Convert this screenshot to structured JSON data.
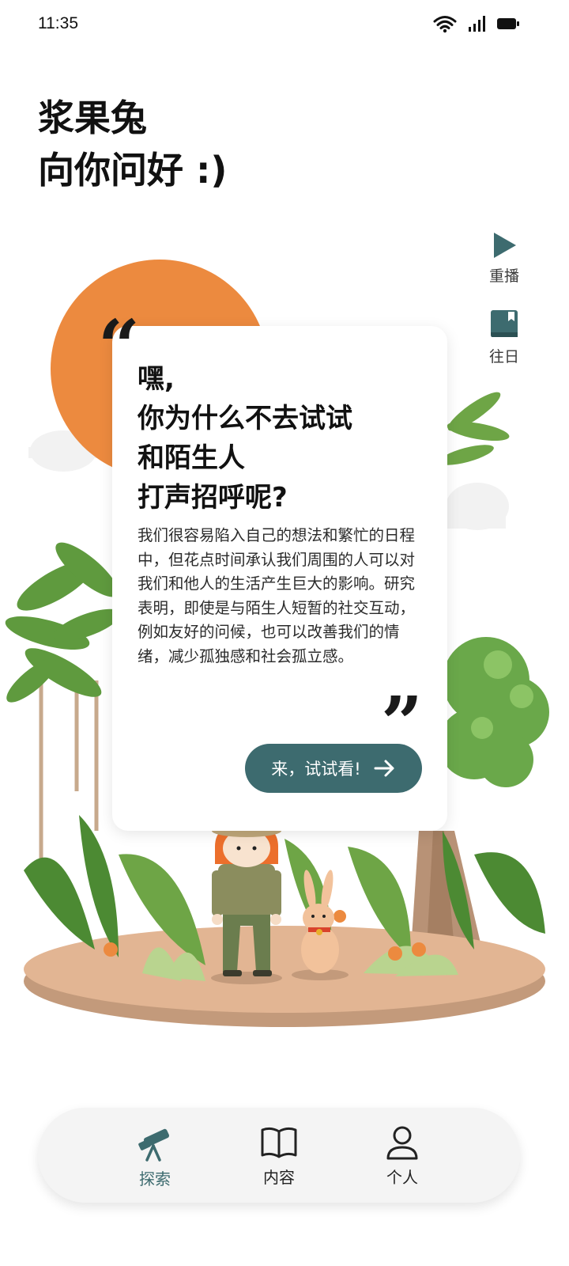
{
  "status_bar": {
    "time": "11:35"
  },
  "greeting": {
    "line1": "浆果兔",
    "line2": "向你问好 :)"
  },
  "side_actions": {
    "replay": "重播",
    "history": "往日"
  },
  "card": {
    "title_lines": [
      "嘿,",
      "你为什么不去试试",
      "和陌生人",
      "打声招呼呢?"
    ],
    "body": "我们很容易陷入自己的想法和繁忙的日程中，但花点时间承认我们周围的人可以对我们和他人的生活产生巨大的影响。研究表明，即使是与陌生人短暂的社交互动，例如友好的问候，也可以改善我们的情绪，减少孤独感和社会孤立感。",
    "cta_label": "来，试试看!"
  },
  "nav": {
    "items": [
      {
        "label": "探索",
        "icon": "telescope-icon",
        "active": true
      },
      {
        "label": "内容",
        "icon": "book-open-icon",
        "active": false
      },
      {
        "label": "个人",
        "icon": "person-icon",
        "active": false
      }
    ]
  },
  "colors": {
    "accent": "#3d6b6f",
    "orange": "#ec8a3f",
    "ground": "#e2b593"
  }
}
